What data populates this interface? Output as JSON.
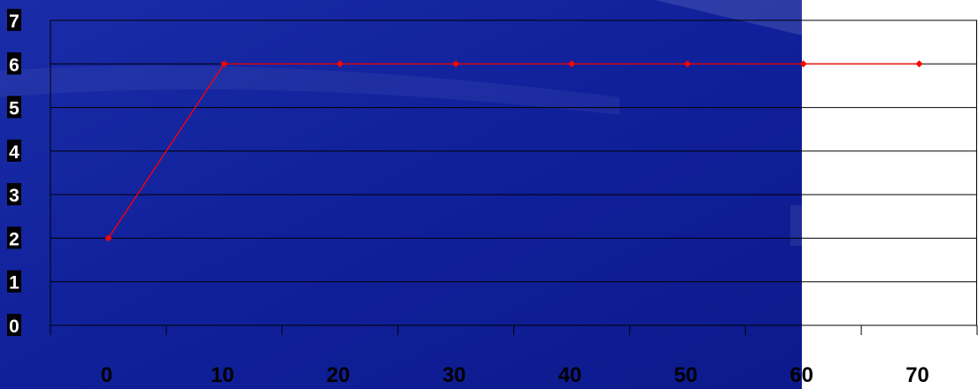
{
  "chart_data": {
    "type": "line",
    "title": "",
    "xlabel": "",
    "ylabel": "",
    "categories": [
      "0",
      "10",
      "20",
      "30",
      "40",
      "50",
      "60",
      "70"
    ],
    "series": [
      {
        "values": [
          2,
          6,
          6,
          6,
          6,
          6,
          6,
          6
        ]
      }
    ],
    "ylim": [
      0,
      7
    ],
    "yticks": [
      "0",
      "1",
      "2",
      "3",
      "4",
      "5",
      "6",
      "7"
    ],
    "grid": true,
    "legend": "none"
  },
  "colors": {
    "line": "#ff0000",
    "background": "#10209a",
    "plot_area_right": "#ffffff",
    "gridline": "#000000",
    "axis_label_light": "#ffffff",
    "axis_label_dark": "#000000"
  }
}
